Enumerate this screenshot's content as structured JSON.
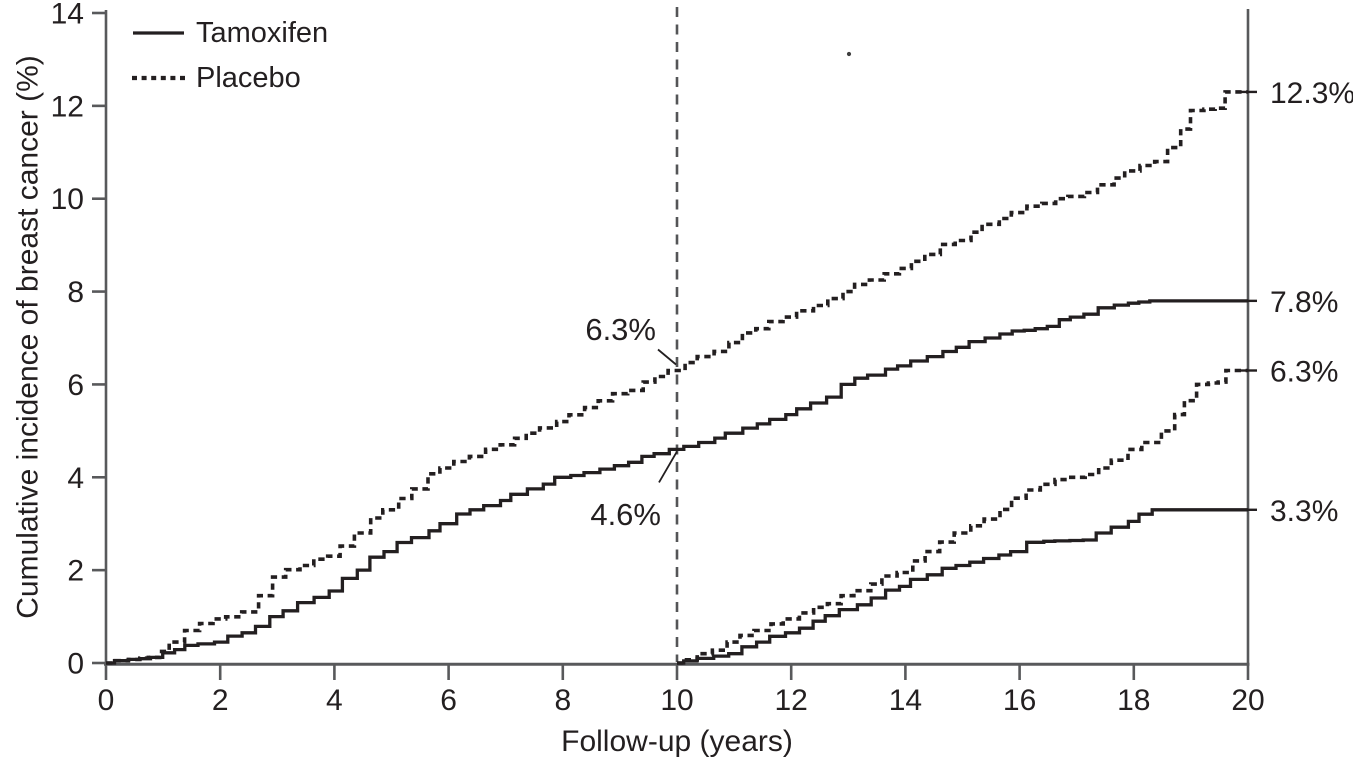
{
  "figure": {
    "background": "#ffffff",
    "text_color": "#231f20",
    "axis_color": "#58595b",
    "curve_color": "#231f20"
  },
  "legend": {
    "items": [
      {
        "label": "Tamoxifen",
        "line_style": "solid"
      },
      {
        "label": "Placebo",
        "line_style": "dotted"
      }
    ]
  },
  "chart_data": {
    "type": "line",
    "subtype": "step-cumulative-incidence",
    "title": "",
    "xlabel": "Follow-up (years)",
    "ylabel": "Cumulative incidence of breast cancer (%)",
    "xlim": [
      0,
      20
    ],
    "ylim": [
      0,
      14
    ],
    "x_ticks": [
      0,
      2,
      4,
      6,
      8,
      10,
      12,
      14,
      16,
      18,
      20
    ],
    "y_ticks": [
      0,
      2,
      4,
      6,
      8,
      10,
      12,
      14
    ],
    "grid": false,
    "legend_position": "top-left",
    "reference_line": {
      "x": 10,
      "style": "dashed"
    },
    "series": [
      {
        "name": "Tamoxifen",
        "group": "overall",
        "style": "solid",
        "value_at_year_10": 4.6,
        "value_at_year_20": 7.8,
        "points": [
          [
            0,
            0
          ],
          [
            0.3,
            0.05
          ],
          [
            0.9,
            0.12
          ],
          [
            1.1,
            0.22
          ],
          [
            1.5,
            0.38
          ],
          [
            2,
            0.45
          ],
          [
            2.5,
            0.65
          ],
          [
            3,
            1.0
          ],
          [
            3.5,
            1.3
          ],
          [
            4,
            1.55
          ],
          [
            4.5,
            2.0
          ],
          [
            5,
            2.4
          ],
          [
            5.5,
            2.7
          ],
          [
            6,
            3.0
          ],
          [
            6.5,
            3.3
          ],
          [
            7,
            3.5
          ],
          [
            7.5,
            3.75
          ],
          [
            8,
            4.0
          ],
          [
            8.5,
            4.1
          ],
          [
            9,
            4.25
          ],
          [
            9.5,
            4.45
          ],
          [
            10,
            4.6
          ],
          [
            10.5,
            4.75
          ],
          [
            11,
            4.95
          ],
          [
            11.5,
            5.15
          ],
          [
            12,
            5.35
          ],
          [
            12.5,
            5.6
          ],
          [
            13,
            6.0
          ],
          [
            13.5,
            6.2
          ],
          [
            14,
            6.4
          ],
          [
            14.5,
            6.6
          ],
          [
            15,
            6.8
          ],
          [
            15.5,
            7.0
          ],
          [
            16,
            7.15
          ],
          [
            16.6,
            7.25
          ],
          [
            17,
            7.45
          ],
          [
            17.5,
            7.65
          ],
          [
            18,
            7.75
          ],
          [
            18.4,
            7.8
          ],
          [
            20,
            7.8
          ]
        ]
      },
      {
        "name": "Placebo",
        "group": "overall",
        "style": "dotted",
        "value_at_year_10": 6.3,
        "value_at_year_20": 12.3,
        "points": [
          [
            0,
            0
          ],
          [
            0.3,
            0.05
          ],
          [
            0.85,
            0.12
          ],
          [
            1,
            0.25
          ],
          [
            1.2,
            0.45
          ],
          [
            1.5,
            0.7
          ],
          [
            1.8,
            0.85
          ],
          [
            2,
            0.95
          ],
          [
            2.5,
            1.1
          ],
          [
            2.8,
            1.45
          ],
          [
            3,
            1.85
          ],
          [
            3.5,
            2.1
          ],
          [
            4,
            2.3
          ],
          [
            4.5,
            2.8
          ],
          [
            5,
            3.3
          ],
          [
            5.5,
            3.75
          ],
          [
            6,
            4.2
          ],
          [
            6.5,
            4.45
          ],
          [
            7,
            4.7
          ],
          [
            7.5,
            4.95
          ],
          [
            8,
            5.2
          ],
          [
            8.5,
            5.5
          ],
          [
            9,
            5.8
          ],
          [
            9.5,
            6.05
          ],
          [
            10,
            6.3
          ],
          [
            10.5,
            6.6
          ],
          [
            11,
            6.9
          ],
          [
            11.5,
            7.2
          ],
          [
            12,
            7.45
          ],
          [
            12.5,
            7.7
          ],
          [
            13,
            8.0
          ],
          [
            13.5,
            8.25
          ],
          [
            14,
            8.5
          ],
          [
            14.5,
            8.8
          ],
          [
            15,
            9.1
          ],
          [
            15.5,
            9.45
          ],
          [
            16,
            9.7
          ],
          [
            16.5,
            9.9
          ],
          [
            17,
            10.05
          ],
          [
            17.5,
            10.3
          ],
          [
            18,
            10.6
          ],
          [
            18.5,
            10.8
          ],
          [
            18.7,
            11.1
          ],
          [
            18.9,
            11.5
          ],
          [
            19.1,
            11.9
          ],
          [
            19.55,
            11.95
          ],
          [
            19.65,
            12.3
          ],
          [
            20,
            12.3
          ]
        ]
      },
      {
        "name": "Tamoxifen",
        "group": "from year 10",
        "style": "solid",
        "value_at_year_20": 3.3,
        "points": [
          [
            10,
            0
          ],
          [
            10.5,
            0.1
          ],
          [
            11,
            0.2
          ],
          [
            11.5,
            0.45
          ],
          [
            12,
            0.65
          ],
          [
            12.5,
            0.9
          ],
          [
            13,
            1.15
          ],
          [
            13.5,
            1.4
          ],
          [
            14,
            1.65
          ],
          [
            14.5,
            1.9
          ],
          [
            15,
            2.1
          ],
          [
            15.5,
            2.25
          ],
          [
            16,
            2.4
          ],
          [
            16.3,
            2.6
          ],
          [
            17.2,
            2.65
          ],
          [
            17.5,
            2.8
          ],
          [
            18,
            3.05
          ],
          [
            18.4,
            3.3
          ],
          [
            20,
            3.3
          ]
        ]
      },
      {
        "name": "Placebo",
        "group": "from year 10",
        "style": "dotted",
        "value_at_year_20": 6.3,
        "points": [
          [
            10,
            0
          ],
          [
            10.5,
            0.2
          ],
          [
            11,
            0.45
          ],
          [
            11.5,
            0.7
          ],
          [
            12,
            0.95
          ],
          [
            12.5,
            1.2
          ],
          [
            13,
            1.45
          ],
          [
            13.5,
            1.7
          ],
          [
            14,
            1.95
          ],
          [
            14.5,
            2.4
          ],
          [
            15,
            2.8
          ],
          [
            15.5,
            3.1
          ],
          [
            16,
            3.55
          ],
          [
            16.5,
            3.85
          ],
          [
            17,
            4.0
          ],
          [
            17.5,
            4.2
          ],
          [
            18,
            4.6
          ],
          [
            18.3,
            4.75
          ],
          [
            18.6,
            5.0
          ],
          [
            18.8,
            5.35
          ],
          [
            19,
            5.65
          ],
          [
            19.2,
            6.0
          ],
          [
            19.55,
            6.05
          ],
          [
            19.65,
            6.3
          ],
          [
            20,
            6.3
          ]
        ]
      }
    ],
    "annotations": [
      {
        "text": "6.3%",
        "x": 10,
        "y": 6.3,
        "series": "Placebo",
        "placement": "above-left"
      },
      {
        "text": "4.6%",
        "x": 10,
        "y": 4.6,
        "series": "Tamoxifen",
        "placement": "below-left"
      }
    ],
    "end_labels": [
      {
        "text": "12.3%",
        "series": "Placebo overall",
        "value": 12.3
      },
      {
        "text": "7.8%",
        "series": "Tamoxifen overall",
        "value": 7.8
      },
      {
        "text": "6.3%",
        "series": "Placebo from year 10",
        "value": 6.3
      },
      {
        "text": "3.3%",
        "series": "Tamoxifen from year 10",
        "value": 3.3
      }
    ]
  }
}
